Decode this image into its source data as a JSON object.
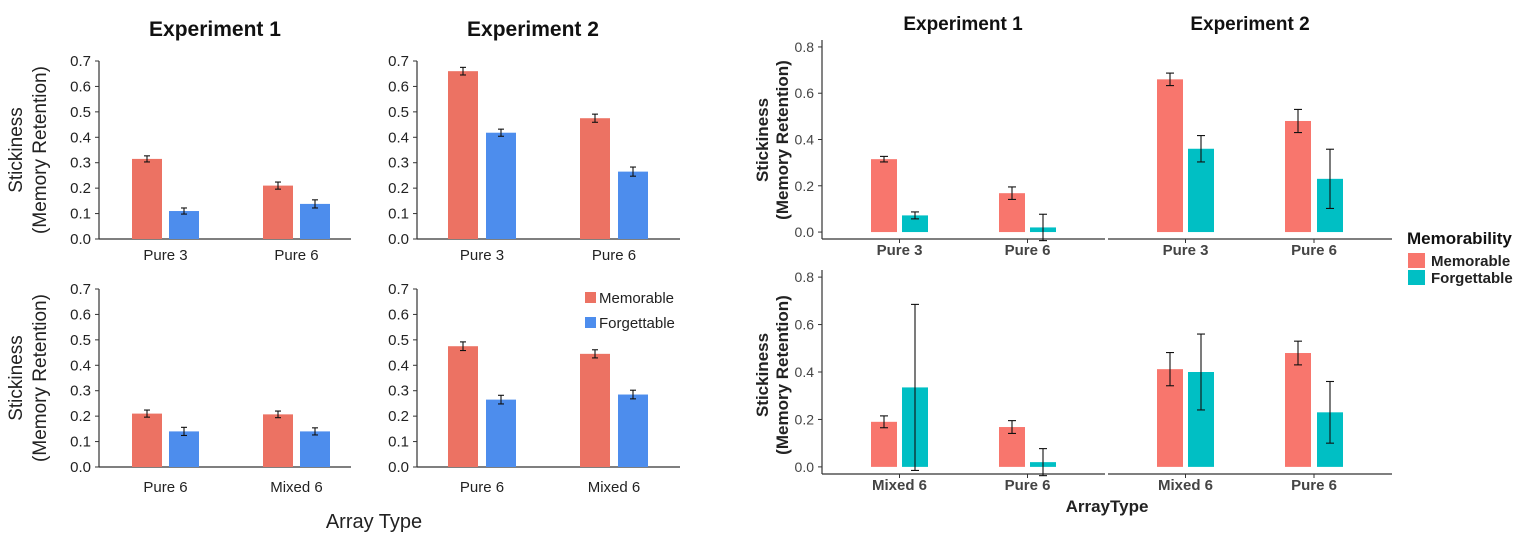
{
  "colors": {
    "left": {
      "memorable": "#ec7263",
      "forgettable": "#4d8ded"
    },
    "right": {
      "memorable": "#f8766d",
      "forgettable": "#00bfc4"
    }
  },
  "left_figure": {
    "col_titles": [
      "Experiment 1",
      "Experiment 2"
    ],
    "ylabel_line1": "Stickiness",
    "ylabel_line2": "(Memory Retention)",
    "xlabel": "Array Type",
    "legend": [
      "Memorable",
      "Forgettable"
    ],
    "legend_position": "top-right of bottom-right panel"
  },
  "right_figure": {
    "col_titles": [
      "Experiment 1",
      "Experiment 2"
    ],
    "ylabel_line1": "Stickiness",
    "ylabel_line2": "(Memory Retention)",
    "xlabel": "ArrayType",
    "legend_title": "Memorability",
    "legend": [
      "Memorable",
      "Forgettable"
    ],
    "legend_position": "right"
  },
  "chart_data": [
    {
      "type": "bar",
      "figure": "left",
      "panel": "top-left",
      "title": "Experiment 1",
      "categories": [
        "Pure 3",
        "Pure 6"
      ],
      "ylim": [
        0,
        0.7
      ],
      "yticks": [
        "0.0",
        "0.1",
        "0.2",
        "0.3",
        "0.4",
        "0.5",
        "0.6",
        "0.7"
      ],
      "series": [
        {
          "name": "Memorable",
          "values": [
            0.315,
            0.21
          ],
          "errors": [
            0.012,
            0.014
          ]
        },
        {
          "name": "Forgettable",
          "values": [
            0.11,
            0.138
          ],
          "errors": [
            0.012,
            0.016
          ]
        }
      ]
    },
    {
      "type": "bar",
      "figure": "left",
      "panel": "top-right",
      "title": "Experiment 2",
      "categories": [
        "Pure 3",
        "Pure 6"
      ],
      "ylim": [
        0,
        0.7
      ],
      "yticks": [
        "0.0",
        "0.1",
        "0.2",
        "0.3",
        "0.4",
        "0.5",
        "0.6",
        "0.7"
      ],
      "series": [
        {
          "name": "Memorable",
          "values": [
            0.66,
            0.475
          ],
          "errors": [
            0.015,
            0.016
          ]
        },
        {
          "name": "Forgettable",
          "values": [
            0.418,
            0.265
          ],
          "errors": [
            0.014,
            0.018
          ]
        }
      ]
    },
    {
      "type": "bar",
      "figure": "left",
      "panel": "bottom-left",
      "categories": [
        "Pure 6",
        "Mixed 6"
      ],
      "ylim": [
        0,
        0.7
      ],
      "yticks": [
        "0.0",
        "0.1",
        "0.2",
        "0.3",
        "0.4",
        "0.5",
        "0.6",
        "0.7"
      ],
      "series": [
        {
          "name": "Memorable",
          "values": [
            0.21,
            0.207
          ],
          "errors": [
            0.014,
            0.013
          ]
        },
        {
          "name": "Forgettable",
          "values": [
            0.14,
            0.14
          ],
          "errors": [
            0.016,
            0.014
          ]
        }
      ]
    },
    {
      "type": "bar",
      "figure": "left",
      "panel": "bottom-right",
      "categories": [
        "Pure 6",
        "Mixed 6"
      ],
      "ylim": [
        0,
        0.7
      ],
      "yticks": [
        "0.0",
        "0.1",
        "0.2",
        "0.3",
        "0.4",
        "0.5",
        "0.6",
        "0.7"
      ],
      "series": [
        {
          "name": "Memorable",
          "values": [
            0.475,
            0.445
          ],
          "errors": [
            0.017,
            0.016
          ]
        },
        {
          "name": "Forgettable",
          "values": [
            0.265,
            0.285
          ],
          "errors": [
            0.017,
            0.017
          ]
        }
      ]
    },
    {
      "type": "bar",
      "figure": "right",
      "panel": "top-left",
      "title": "Experiment 1",
      "categories": [
        "Pure 3",
        "Pure 6"
      ],
      "ylim": [
        -0.03,
        0.83
      ],
      "yticks": [
        "0.0",
        "0.2",
        "0.4",
        "0.6",
        "0.8"
      ],
      "series": [
        {
          "name": "Memorable",
          "values": [
            0.315,
            0.168
          ],
          "errors": [
            0.012,
            0.027
          ]
        },
        {
          "name": "Forgettable",
          "values": [
            0.072,
            0.02
          ],
          "errors": [
            0.015,
            0.057
          ]
        }
      ]
    },
    {
      "type": "bar",
      "figure": "right",
      "panel": "top-right",
      "title": "Experiment 2",
      "categories": [
        "Pure 3",
        "Pure 6"
      ],
      "ylim": [
        -0.03,
        0.83
      ],
      "yticks": [
        "0.0",
        "0.2",
        "0.4",
        "0.6",
        "0.8"
      ],
      "series": [
        {
          "name": "Memorable",
          "values": [
            0.66,
            0.48
          ],
          "errors": [
            0.027,
            0.05
          ]
        },
        {
          "name": "Forgettable",
          "values": [
            0.36,
            0.23
          ],
          "errors": [
            0.057,
            0.128
          ]
        }
      ]
    },
    {
      "type": "bar",
      "figure": "right",
      "panel": "bottom-left",
      "categories": [
        "Mixed 6",
        "Pure 6"
      ],
      "ylim": [
        -0.03,
        0.83
      ],
      "yticks": [
        "0.0",
        "0.2",
        "0.4",
        "0.6",
        "0.8"
      ],
      "series": [
        {
          "name": "Memorable",
          "values": [
            0.19,
            0.168
          ],
          "errors": [
            0.025,
            0.027
          ]
        },
        {
          "name": "Forgettable",
          "values": [
            0.335,
            0.02
          ],
          "errors": [
            0.35,
            0.057
          ]
        }
      ]
    },
    {
      "type": "bar",
      "figure": "right",
      "panel": "bottom-right",
      "categories": [
        "Mixed 6",
        "Pure 6"
      ],
      "ylim": [
        -0.03,
        0.83
      ],
      "yticks": [
        "0.0",
        "0.2",
        "0.4",
        "0.6",
        "0.8"
      ],
      "series": [
        {
          "name": "Memorable",
          "values": [
            0.412,
            0.48
          ],
          "errors": [
            0.07,
            0.05
          ]
        },
        {
          "name": "Forgettable",
          "values": [
            0.4,
            0.23
          ],
          "errors": [
            0.16,
            0.13
          ]
        }
      ]
    }
  ]
}
